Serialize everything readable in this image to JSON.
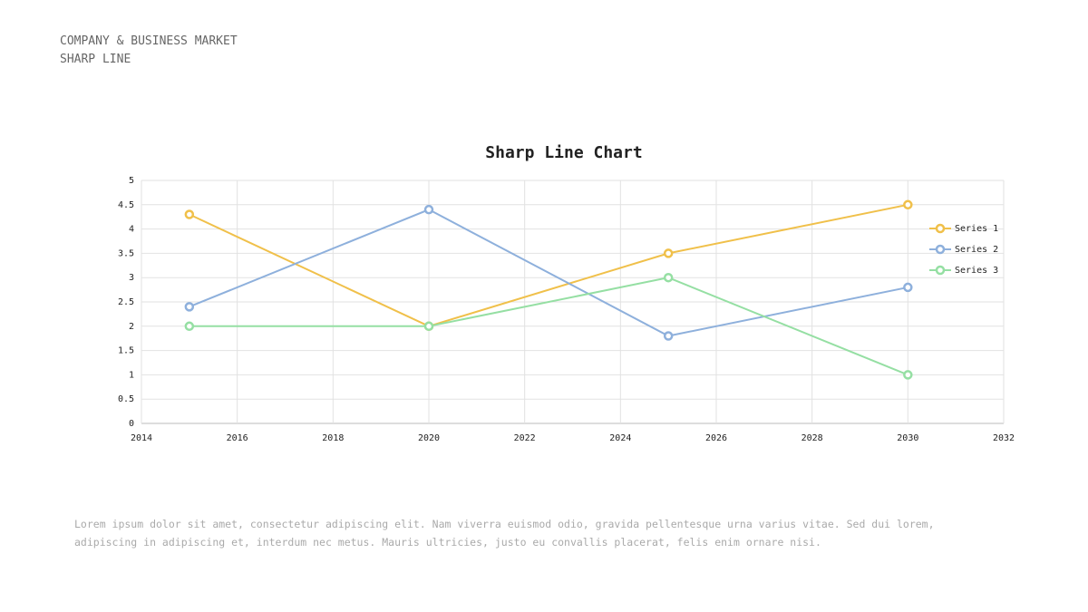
{
  "header": {
    "lines": [
      "COMPANY & BUSINESS MARKET",
      "SHARP LINE"
    ]
  },
  "chart_data": {
    "type": "line",
    "title": "Sharp Line Chart",
    "x": [
      2015,
      2020,
      2025,
      2030
    ],
    "series": [
      {
        "name": "Series 1",
        "color": "#f0c04a",
        "values": [
          4.3,
          2,
          3.5,
          4.5
        ]
      },
      {
        "name": "Series 2",
        "color": "#8eb0dc",
        "values": [
          2.4,
          4.4,
          1.8,
          2.8
        ]
      },
      {
        "name": "Series 3",
        "color": "#95dfa3",
        "values": [
          2,
          2,
          3,
          1
        ]
      }
    ],
    "xlim": [
      2014,
      2032
    ],
    "xticks": [
      2014,
      2016,
      2018,
      2020,
      2022,
      2024,
      2026,
      2028,
      2030,
      2032
    ],
    "ylim": [
      0,
      5
    ],
    "yticks": [
      0,
      0.5,
      1,
      1.5,
      2,
      2.5,
      3,
      3.5,
      4,
      4.5,
      5
    ],
    "grid": true,
    "legend": "right"
  },
  "body": {
    "lines": [
      "Lorem ipsum dolor sit amet, consectetur adipiscing elit. Nam viverra euismod odio, gravida pellentesque urna varius vitae. Sed dui lorem,",
      "adipiscing in adipiscing et, interdum nec metus. Mauris ultricies, justo eu convallis placerat, felis enim ornare nisi."
    ]
  }
}
